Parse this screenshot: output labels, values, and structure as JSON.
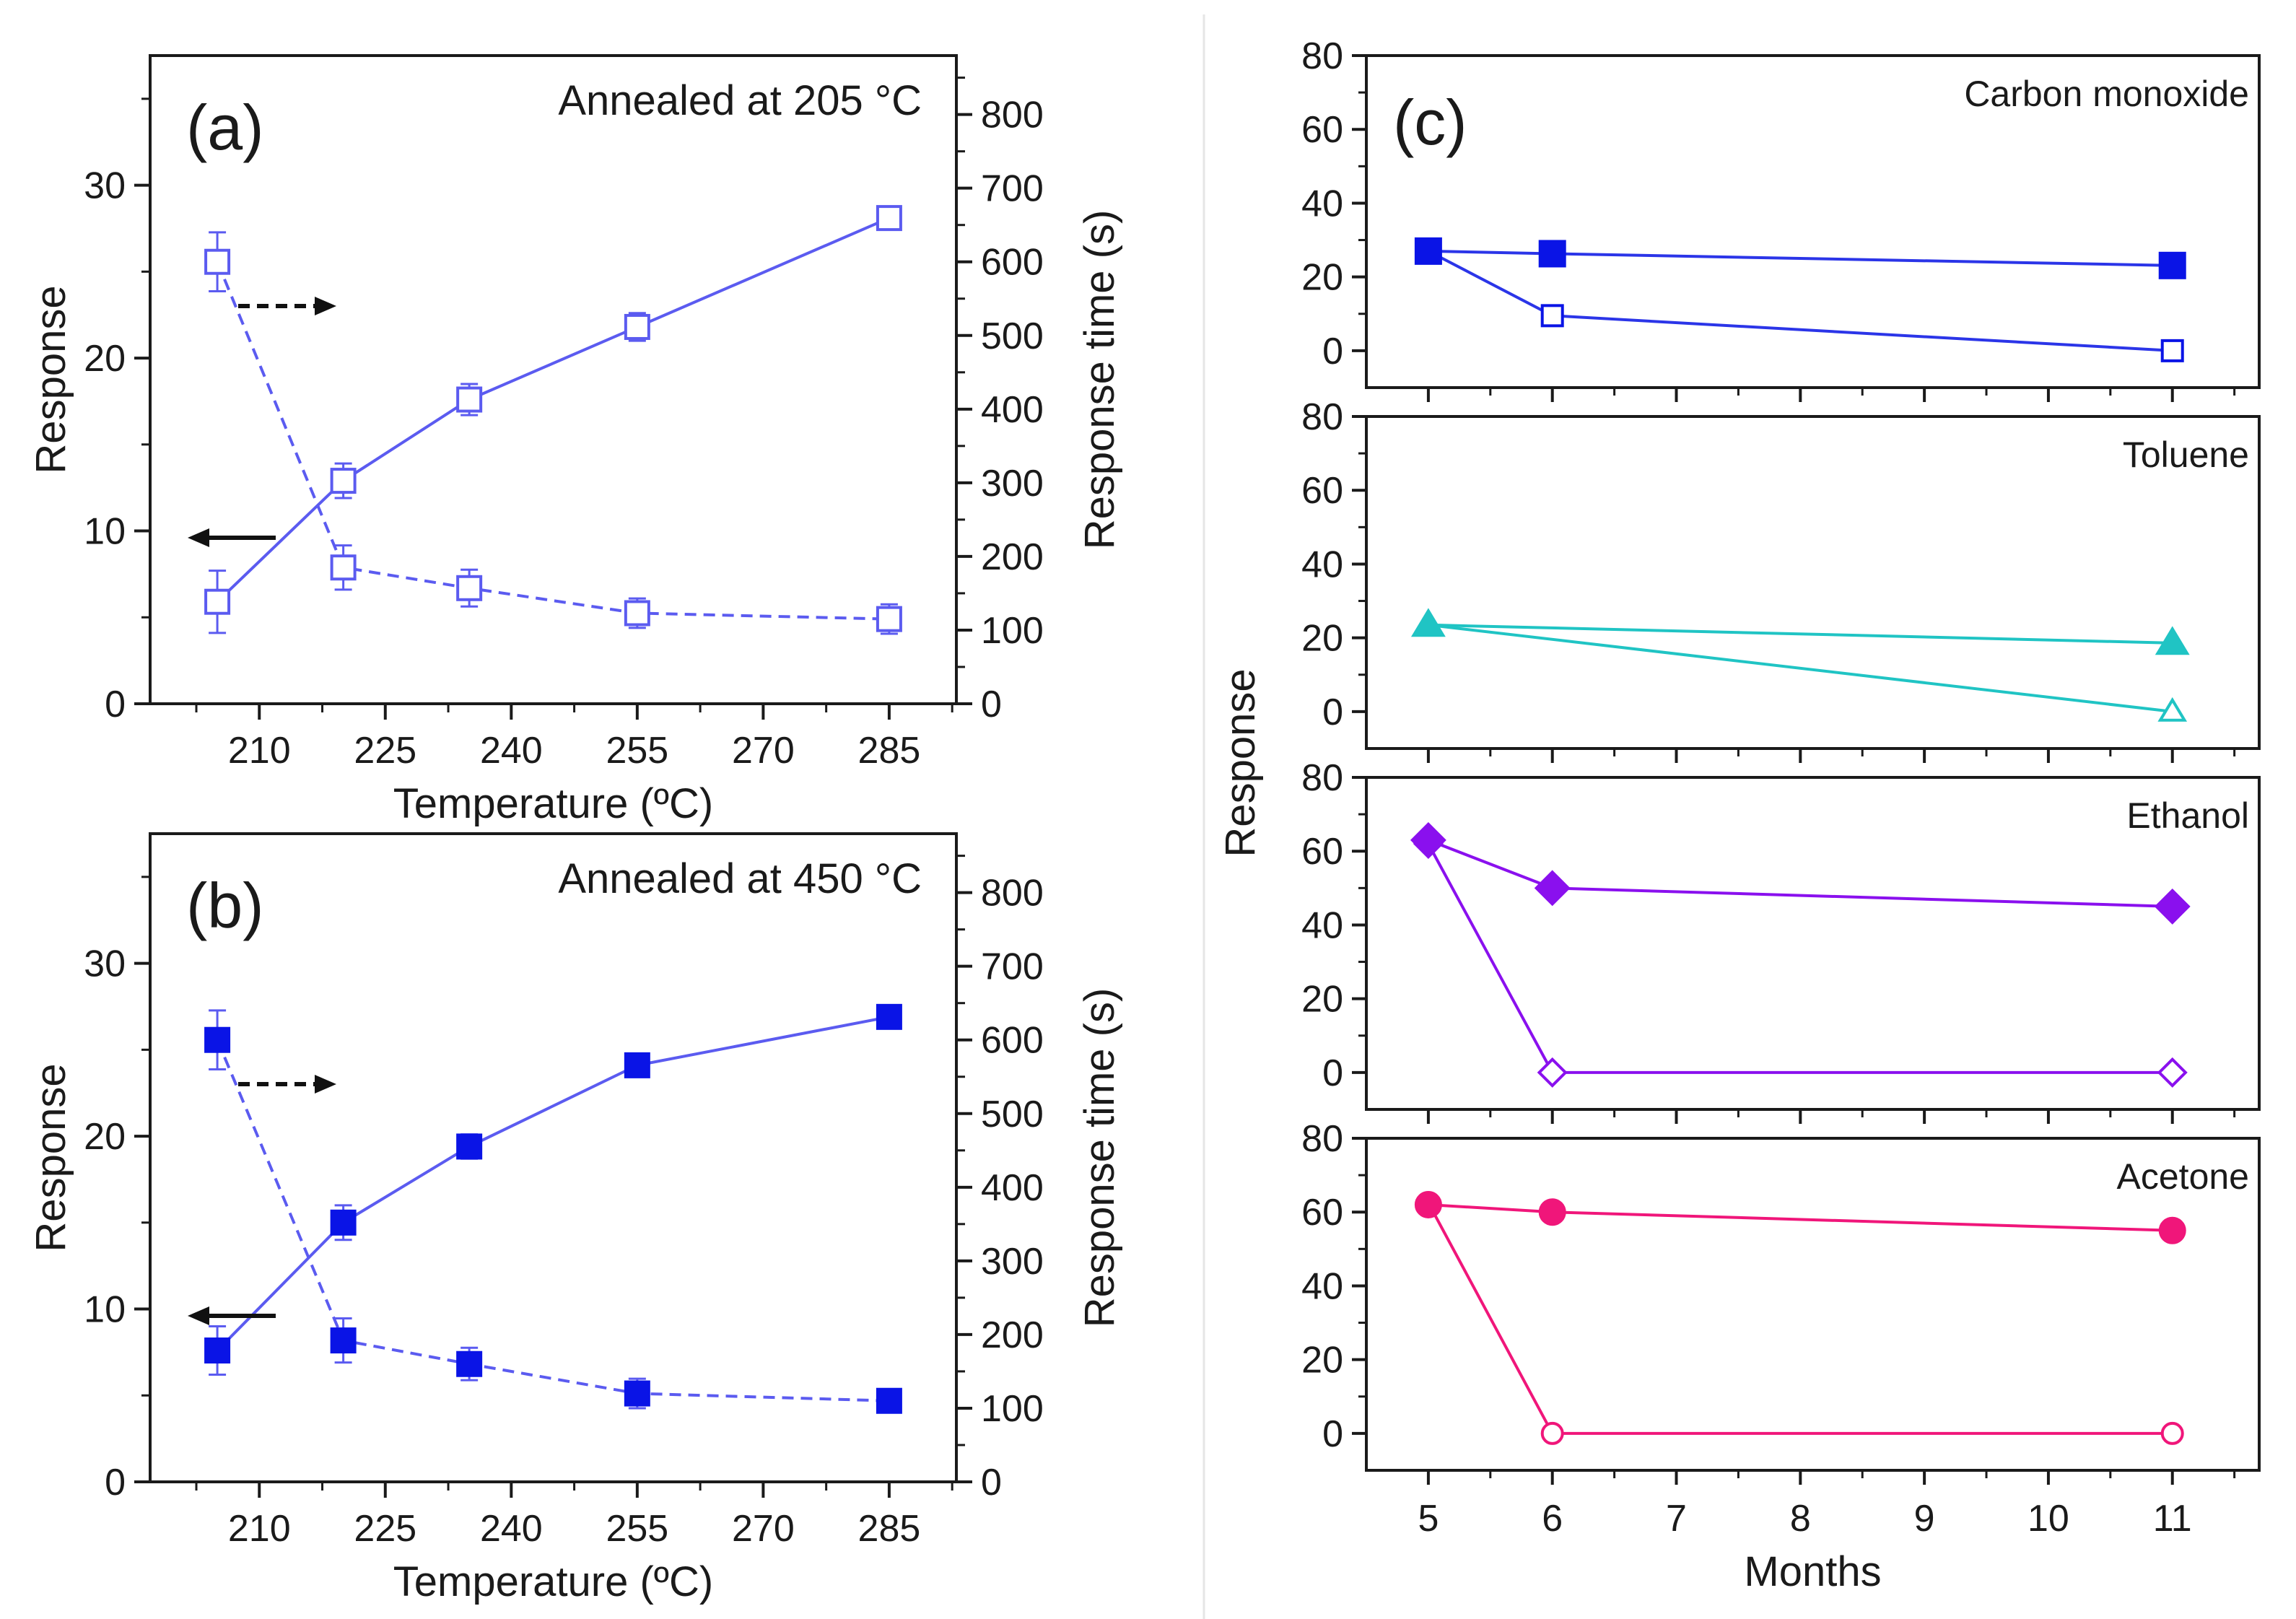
{
  "chart_data": [
    {
      "id": "a",
      "type": "line",
      "panel_label": "(a)",
      "annotation": "Annealed at 205 °C",
      "xlabel": "Temperature (ºC)",
      "ylabel": "Response",
      "y2label": "Response time (s)",
      "xlim": [
        197,
        293
      ],
      "ylim": [
        0,
        37.5
      ],
      "y2lim": [
        0,
        880
      ],
      "xticks": [
        210,
        225,
        240,
        255,
        270,
        285
      ],
      "yticks": [
        0,
        10,
        20,
        30
      ],
      "y2ticks": [
        0,
        100,
        200,
        300,
        400,
        500,
        600,
        700,
        800
      ],
      "marker": "square",
      "filled": false,
      "color": "#5b5bf0",
      "series": [
        {
          "name": "Response",
          "axis": "left",
          "style": "solid",
          "x": [
            205,
            220,
            235,
            255,
            285
          ],
          "values": [
            5.9,
            12.9,
            17.6,
            21.8,
            28.1
          ],
          "errors": [
            1.8,
            1.0,
            0.9,
            0.8,
            0.4
          ]
        },
        {
          "name": "Response time",
          "axis": "right",
          "style": "dashed",
          "x": [
            205,
            220,
            235,
            255,
            285
          ],
          "values": [
            600,
            185,
            157,
            123,
            115
          ],
          "errors": [
            40,
            30,
            25,
            20,
            20
          ]
        }
      ],
      "arrows": [
        {
          "direction": "right",
          "style": "dashed",
          "series": "Response time"
        },
        {
          "direction": "left",
          "style": "solid",
          "series": "Response"
        }
      ]
    },
    {
      "id": "b",
      "type": "line",
      "panel_label": "(b)",
      "annotation": "Annealed at 450 °C",
      "xlabel": "Temperature (ºC)",
      "ylabel": "Response",
      "y2label": "Response time (s)",
      "xlim": [
        197,
        293
      ],
      "ylim": [
        0,
        37.5
      ],
      "y2lim": [
        0,
        880
      ],
      "xticks": [
        210,
        225,
        240,
        255,
        270,
        285
      ],
      "yticks": [
        0,
        10,
        20,
        30
      ],
      "y2ticks": [
        0,
        100,
        200,
        300,
        400,
        500,
        600,
        700,
        800
      ],
      "marker": "square",
      "filled": true,
      "color": "#0a14e6",
      "line_color": "#5b5bf0",
      "series": [
        {
          "name": "Response",
          "axis": "left",
          "style": "solid",
          "x": [
            205,
            220,
            235,
            255,
            285
          ],
          "values": [
            7.6,
            15.0,
            19.4,
            24.1,
            26.9
          ],
          "errors": [
            1.4,
            1.0,
            0.7,
            0.6,
            0.3
          ]
        },
        {
          "name": "Response time",
          "axis": "right",
          "style": "dashed",
          "x": [
            205,
            220,
            235,
            255,
            285
          ],
          "values": [
            600,
            192,
            160,
            120,
            110
          ],
          "errors": [
            40,
            30,
            22,
            20,
            15
          ]
        }
      ],
      "arrows": [
        {
          "direction": "right",
          "style": "dashed",
          "series": "Response time"
        },
        {
          "direction": "left",
          "style": "solid",
          "series": "Response"
        }
      ]
    },
    {
      "id": "c",
      "type": "line",
      "panel_label": "(c)",
      "xlabel": "Months",
      "ylabel": "Response",
      "xlim": [
        4.5,
        11.7
      ],
      "xticks": [
        5,
        6,
        7,
        8,
        9,
        10,
        11
      ],
      "subplots": [
        {
          "gas": "Carbon monoxide",
          "marker": "square",
          "color": "#0a14e6",
          "line_color": "#2b35e8",
          "ylim": [
            -10,
            80
          ],
          "yticks": [
            0,
            20,
            40,
            60,
            80
          ],
          "series": [
            {
              "name": "filled",
              "filled": true,
              "x": [
                5,
                6,
                11
              ],
              "values": [
                27,
                26.3,
                23.1
              ]
            },
            {
              "name": "open",
              "filled": false,
              "x": [
                5,
                6,
                11
              ],
              "values": [
                27,
                9.5,
                0
              ]
            }
          ]
        },
        {
          "gas": "Toluene",
          "marker": "triangle",
          "color": "#20c4c4",
          "line_color": "#20c4c4",
          "ylim": [
            -10,
            80
          ],
          "yticks": [
            0,
            20,
            40,
            60,
            80
          ],
          "series": [
            {
              "name": "filled",
              "filled": true,
              "x": [
                5,
                11
              ],
              "values": [
                23.5,
                18.6
              ]
            },
            {
              "name": "open",
              "filled": false,
              "x": [
                5,
                11
              ],
              "values": [
                23.5,
                0
              ]
            }
          ]
        },
        {
          "gas": "Ethanol",
          "marker": "diamond",
          "color": "#8a10ee",
          "line_color": "#8a10ee",
          "ylim": [
            -10,
            80
          ],
          "yticks": [
            0,
            20,
            40,
            60,
            80
          ],
          "series": [
            {
              "name": "filled",
              "filled": true,
              "x": [
                5,
                6,
                11
              ],
              "values": [
                63,
                50,
                45
              ]
            },
            {
              "name": "open",
              "filled": false,
              "x": [
                5,
                6,
                11
              ],
              "values": [
                62,
                0,
                0
              ]
            }
          ]
        },
        {
          "gas": "Acetone",
          "marker": "circle",
          "color": "#f0167a",
          "line_color": "#f0167a",
          "ylim": [
            -10,
            80
          ],
          "yticks": [
            0,
            20,
            40,
            60,
            80
          ],
          "series": [
            {
              "name": "filled",
              "filled": true,
              "x": [
                5,
                6,
                11
              ],
              "values": [
                62,
                60,
                55
              ]
            },
            {
              "name": "open",
              "filled": false,
              "x": [
                5,
                6,
                11
              ],
              "values": [
                62.5,
                0,
                0
              ]
            }
          ]
        }
      ]
    }
  ]
}
